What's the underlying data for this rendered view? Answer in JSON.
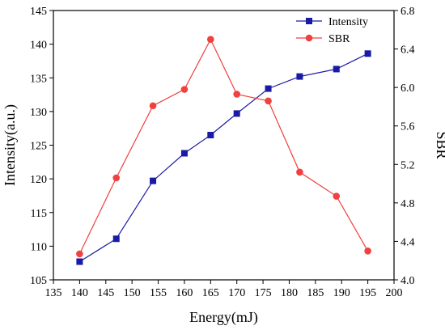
{
  "chart_data": {
    "type": "line",
    "x": [
      140,
      147,
      154,
      160,
      165,
      170,
      176,
      182,
      189,
      195
    ],
    "xlabel": "Energy(mJ)",
    "ylabel_left": "Intensity(a.u.)",
    "ylabel_right": "SBR",
    "xlim": [
      135,
      200
    ],
    "ylim_left": [
      105,
      145
    ],
    "ylim_right": [
      4.0,
      6.8
    ],
    "x_ticks": [
      135,
      140,
      145,
      150,
      155,
      160,
      165,
      170,
      175,
      180,
      185,
      190,
      195,
      200
    ],
    "y_left_ticks": [
      105,
      110,
      115,
      120,
      125,
      130,
      135,
      140,
      145
    ],
    "y_right_ticks": [
      "4.0",
      "4.4",
      "4.8",
      "5.2",
      "5.6",
      "6.0",
      "6.4",
      "6.8"
    ],
    "grid": false,
    "legend_position": "top-right",
    "series": [
      {
        "name": "Intensity",
        "axis": "left",
        "marker": "square",
        "color": "#1a1aa6",
        "values": [
          107.7,
          111.1,
          119.7,
          123.8,
          126.5,
          129.7,
          133.4,
          135.2,
          136.3,
          138.6
        ]
      },
      {
        "name": "SBR",
        "axis": "right",
        "marker": "circle",
        "color": "#f04040",
        "values": [
          4.27,
          5.06,
          5.81,
          5.98,
          6.5,
          5.93,
          5.86,
          5.12,
          4.87,
          4.3
        ]
      }
    ]
  }
}
